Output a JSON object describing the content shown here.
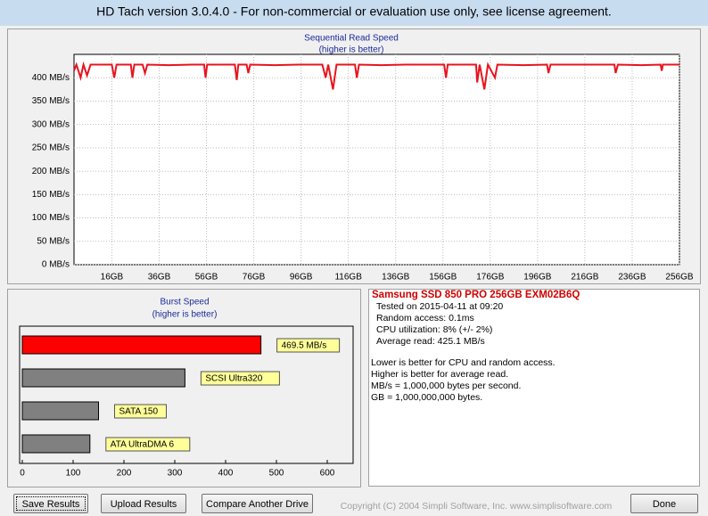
{
  "window": {
    "title": "HD Tach version 3.0.4.0  - For non-commercial or evaluation use only, see license agreement."
  },
  "chart_data": [
    {
      "type": "line",
      "title": "Sequential Read Speed",
      "subtitle": "(higher is better)",
      "color": "#e8141e",
      "x": [
        0,
        1,
        2.8,
        4,
        5.5,
        7,
        16,
        17,
        18,
        24,
        24.7,
        25.5,
        29,
        30,
        31,
        40,
        50,
        55,
        55.6,
        56.3,
        60,
        68,
        68.8,
        69.5,
        73,
        73.7,
        74.5,
        85,
        95,
        105,
        106.4,
        107.5,
        109.5,
        111,
        118.8,
        119.6,
        120.5,
        130,
        140,
        150,
        156.5,
        157.3,
        158,
        165,
        170,
        170.5,
        171.5,
        173.5,
        175,
        178,
        179,
        190,
        200,
        200.6,
        201.5,
        215,
        228.5,
        229,
        230,
        240,
        248,
        248.5,
        249,
        256
      ],
      "values": [
        415,
        428,
        400,
        428,
        405,
        428,
        428,
        400,
        428,
        428,
        400,
        428,
        428,
        410,
        428,
        427,
        428,
        428,
        400,
        428,
        428,
        428,
        395,
        428,
        428,
        410,
        428,
        427,
        428,
        428,
        400,
        428,
        375,
        428,
        428,
        400,
        428,
        427,
        428,
        428,
        428,
        400,
        428,
        428,
        428,
        390,
        428,
        375,
        428,
        400,
        428,
        427,
        428,
        410,
        428,
        428,
        428,
        410,
        428,
        427,
        428,
        415,
        428,
        428
      ],
      "xlim": [
        0,
        256
      ],
      "ylim": [
        0,
        450
      ],
      "xticks": [
        {
          "value": 16,
          "label": "16GB"
        },
        {
          "value": 36,
          "label": "36GB"
        },
        {
          "value": 56,
          "label": "56GB"
        },
        {
          "value": 76,
          "label": "76GB"
        },
        {
          "value": 96,
          "label": "96GB"
        },
        {
          "value": 116,
          "label": "116GB"
        },
        {
          "value": 136,
          "label": "136GB"
        },
        {
          "value": 156,
          "label": "156GB"
        },
        {
          "value": 176,
          "label": "176GB"
        },
        {
          "value": 196,
          "label": "196GB"
        },
        {
          "value": 216,
          "label": "216GB"
        },
        {
          "value": 236,
          "label": "236GB"
        },
        {
          "value": 256,
          "label": "256GB"
        }
      ],
      "yticks": [
        {
          "value": 0,
          "label": "0 MB/s"
        },
        {
          "value": 50,
          "label": "50 MB/s"
        },
        {
          "value": 100,
          "label": "100 MB/s"
        },
        {
          "value": 150,
          "label": "150 MB/s"
        },
        {
          "value": 200,
          "label": "200 MB/s"
        },
        {
          "value": 250,
          "label": "250 MB/s"
        },
        {
          "value": 300,
          "label": "300 MB/s"
        },
        {
          "value": 350,
          "label": "350 MB/s"
        },
        {
          "value": 400,
          "label": "400 MB/s"
        }
      ],
      "grid": true
    },
    {
      "type": "hbar",
      "title": "Burst Speed",
      "subtitle": "(higher is better)",
      "categories": [
        null,
        "SCSI Ultra320",
        "SATA 150",
        "ATA UltraDMA 6"
      ],
      "values": [
        469.5,
        320,
        150,
        133
      ],
      "value_labels": [
        "469.5 MB/s",
        null,
        null,
        null
      ],
      "colors": [
        "#ff0000",
        "#808080",
        "#808080",
        "#808080"
      ],
      "xlim": [
        0,
        650
      ],
      "xticks": [
        0,
        100,
        200,
        300,
        400,
        500,
        600
      ],
      "grid": false
    }
  ],
  "info": {
    "drive": "Samsung SSD 850 PRO 256GB EXM02B6Q",
    "lines": [
      "Tested on 2015-04-11 at 09:20",
      "Random access: 0.1ms",
      "CPU utilization: 8% (+/- 2%)",
      "Average read: 425.1 MB/s"
    ],
    "notes": [
      "Lower is better for CPU and random access.",
      "Higher is better for average read.",
      "MB/s = 1,000,000 bytes per second.",
      "GB = 1,000,000,000 bytes."
    ]
  },
  "buttons": [
    "Save Results",
    "Upload Results",
    "Compare Another Drive",
    "Done"
  ],
  "copyright": "Copyright (C) 2004 Simpli Software, Inc. www.simplisoftware.com"
}
